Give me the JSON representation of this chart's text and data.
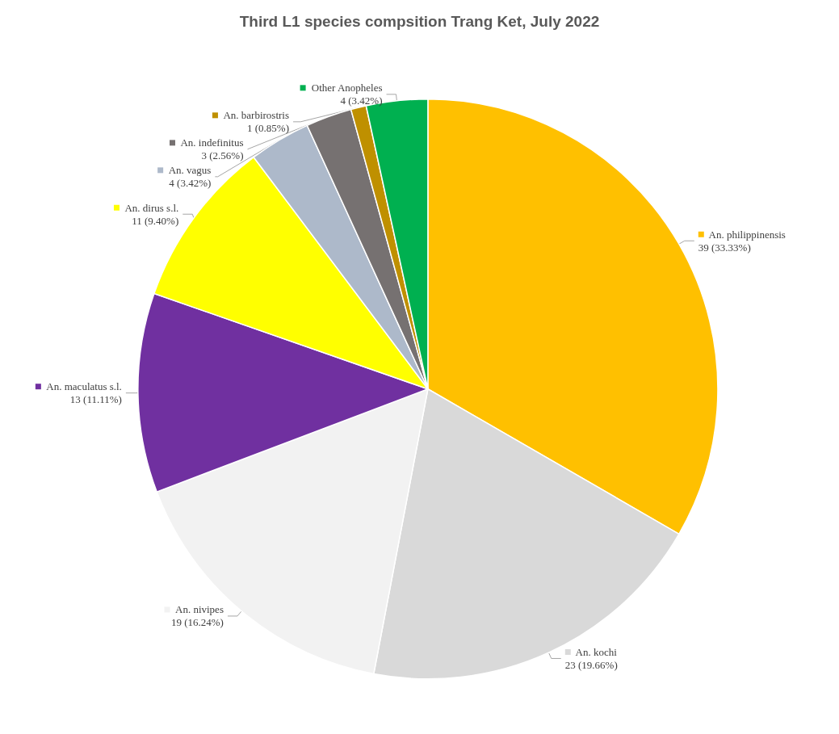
{
  "chart_data": {
    "type": "pie",
    "title": "Third L1 species compsition Trang Ket, July 2022",
    "categories": [
      "An. philippinensis",
      "An. kochi",
      "An. nivipes",
      "An. maculatus s.l.",
      "An. dirus s.l.",
      "An. vagus",
      "An. indefinitus",
      "An. barbirostris",
      "Other Anopheles"
    ],
    "values": [
      39,
      23,
      19,
      13,
      11,
      4,
      3,
      1,
      4
    ],
    "colors": [
      "#ffc000",
      "#d9d9d9",
      "#f2f2f2",
      "#7030a0",
      "#ffff00",
      "#adb9ca",
      "#767171",
      "#bf9000",
      "#00b050"
    ],
    "value_labels": [
      "39 (33.33%)",
      "23 (19.66%)",
      "19 (16.24%)",
      "13 (11.11%)",
      "11 (9.40%)",
      "4 (3.42%)",
      "3 (2.56%)",
      "1 (0.85%)",
      "4 (3.42%)"
    ],
    "legend": true
  }
}
